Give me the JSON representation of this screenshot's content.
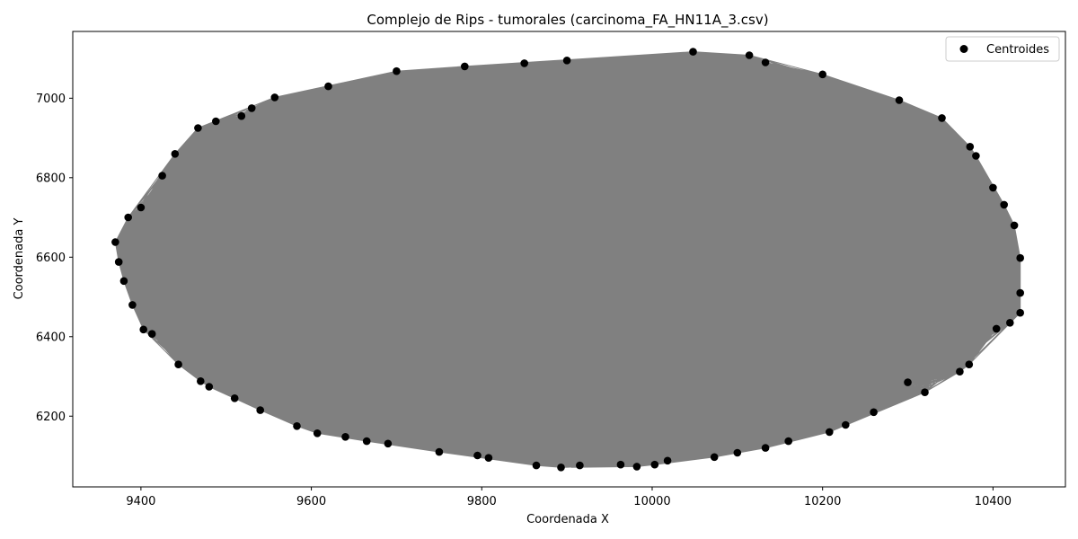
{
  "chart_data": {
    "type": "scatter",
    "title": "Complejo de Rips - tumorales (carcinoma_FA_HN11A_3.csv)",
    "xlabel": "Coordenada X",
    "ylabel": "Coordenada Y",
    "xlim": [
      9320,
      10485
    ],
    "ylim": [
      6022,
      7168
    ],
    "xticks": [
      9400,
      9600,
      9800,
      10000,
      10200,
      10400
    ],
    "yticks": [
      6200,
      6400,
      6600,
      6800,
      7000
    ],
    "legend": {
      "placement": "top-right",
      "entries": [
        "Centroides"
      ]
    },
    "grid": false,
    "colors": {
      "points": "#000000",
      "edges": "#808080"
    },
    "series": [
      {
        "name": "Centroides",
        "points": [
          [
            9370,
            6638
          ],
          [
            9374,
            6588
          ],
          [
            9400,
            6725
          ],
          [
            9425,
            6805
          ],
          [
            9467,
            6925
          ],
          [
            9488,
            6942
          ],
          [
            9518,
            6955
          ],
          [
            9557,
            7002
          ],
          [
            9700,
            7068
          ],
          [
            9780,
            7080
          ],
          [
            9900,
            7095
          ],
          [
            10048,
            7117
          ],
          [
            10114,
            7108
          ],
          [
            10133,
            7090
          ],
          [
            10290,
            6995
          ],
          [
            10373,
            6878
          ],
          [
            10380,
            6855
          ],
          [
            10400,
            6775
          ],
          [
            10413,
            6732
          ],
          [
            10432,
            6598
          ],
          [
            10432,
            6510
          ],
          [
            10432,
            6460
          ],
          [
            10420,
            6435
          ],
          [
            10404,
            6420
          ],
          [
            10372,
            6330
          ],
          [
            10361,
            6312
          ],
          [
            10320,
            6260
          ],
          [
            10227,
            6178
          ],
          [
            10208,
            6160
          ],
          [
            10160,
            6137
          ],
          [
            10133,
            6120
          ],
          [
            10100,
            6108
          ],
          [
            10073,
            6097
          ],
          [
            10018,
            6088
          ],
          [
            10003,
            6078
          ],
          [
            9982,
            6073
          ],
          [
            9963,
            6078
          ],
          [
            9915,
            6076
          ],
          [
            9893,
            6071
          ],
          [
            9864,
            6076
          ],
          [
            9808,
            6095
          ],
          [
            9795,
            6101
          ],
          [
            9690,
            6131
          ],
          [
            9665,
            6137
          ],
          [
            9607,
            6157
          ],
          [
            9583,
            6175
          ],
          [
            9540,
            6215
          ],
          [
            9480,
            6274
          ],
          [
            9470,
            6288
          ],
          [
            9444,
            6330
          ],
          [
            9413,
            6407
          ],
          [
            9403,
            6418
          ],
          [
            9390,
            6480
          ],
          [
            9380,
            6540
          ],
          [
            9385,
            6700
          ],
          [
            9440,
            6860
          ],
          [
            9530,
            6975
          ],
          [
            9620,
            7030
          ],
          [
            9850,
            7088
          ],
          [
            10200,
            7060
          ],
          [
            10340,
            6950
          ],
          [
            10425,
            6680
          ],
          [
            10300,
            6285
          ],
          [
            10260,
            6210
          ],
          [
            9750,
            6110
          ],
          [
            9640,
            6148
          ],
          [
            9510,
            6245
          ]
        ]
      }
    ]
  }
}
